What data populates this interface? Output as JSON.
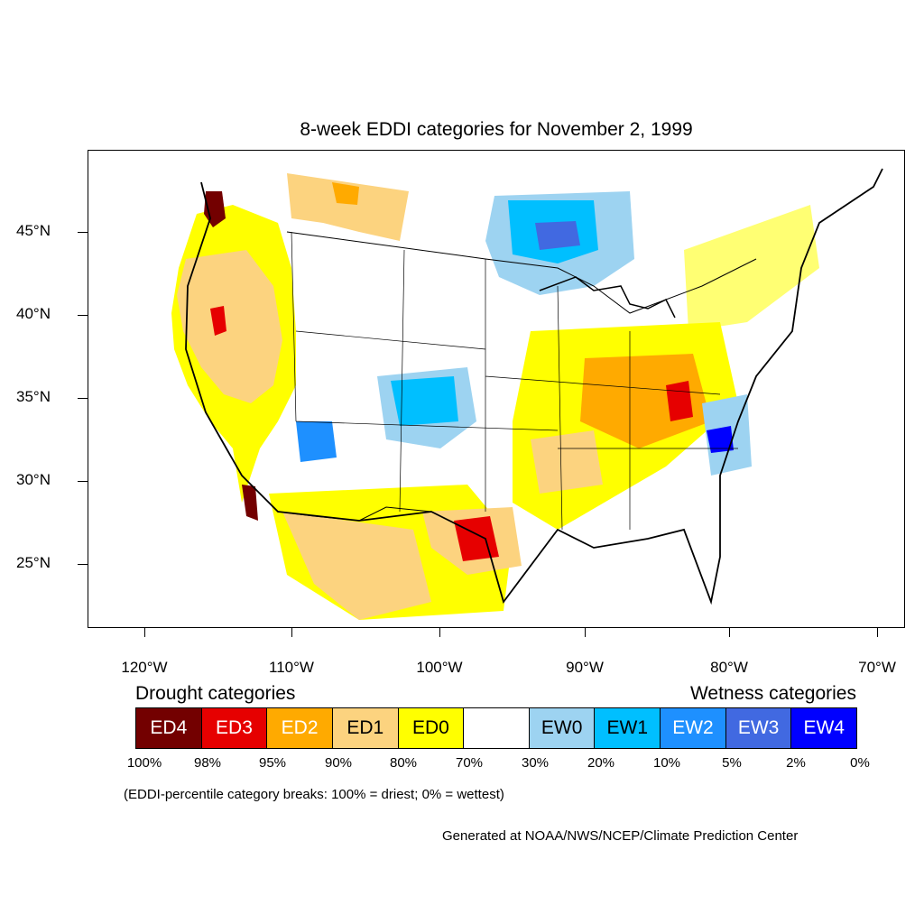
{
  "map": {
    "title": "8-week EDDI categories for November 2, 1999",
    "lat_labels": [
      "45°N",
      "40°N",
      "35°N",
      "30°N",
      "25°N"
    ],
    "lon_labels": [
      "120°W",
      "110°W",
      "100°W",
      "90°W",
      "80°W",
      "70°W"
    ]
  },
  "legend": {
    "drought_heading": "Drought categories",
    "wetness_heading": "Wetness categories",
    "categories": [
      {
        "label": "ED4",
        "color": "#730000",
        "text_color": "#ffffff"
      },
      {
        "label": "ED3",
        "color": "#e60000",
        "text_color": "#ffffff"
      },
      {
        "label": "ED2",
        "color": "#ffaa00",
        "text_color": "#ffffff"
      },
      {
        "label": "ED1",
        "color": "#fcd37f",
        "text_color": "#000000"
      },
      {
        "label": "ED0",
        "color": "#ffff00",
        "text_color": "#000000"
      },
      {
        "label": "",
        "color": "#ffffff",
        "text_color": "#000000"
      },
      {
        "label": "EW0",
        "color": "#9dd3f1",
        "text_color": "#000000"
      },
      {
        "label": "EW1",
        "color": "#00bfff",
        "text_color": "#000000"
      },
      {
        "label": "EW2",
        "color": "#1e90ff",
        "text_color": "#ffffff"
      },
      {
        "label": "EW3",
        "color": "#4169e1",
        "text_color": "#ffffff"
      },
      {
        "label": "EW4",
        "color": "#0000ff",
        "text_color": "#ffffff"
      }
    ],
    "breaks": [
      "100%",
      "98%",
      "95%",
      "90%",
      "80%",
      "70%",
      "30%",
      "20%",
      "10%",
      "5%",
      "2%",
      "0%"
    ],
    "note": "(EDDI-percentile category breaks: 100% = driest; 0% = wettest)"
  },
  "credit": "Generated at NOAA/NWS/NCEP/Climate Prediction Center"
}
